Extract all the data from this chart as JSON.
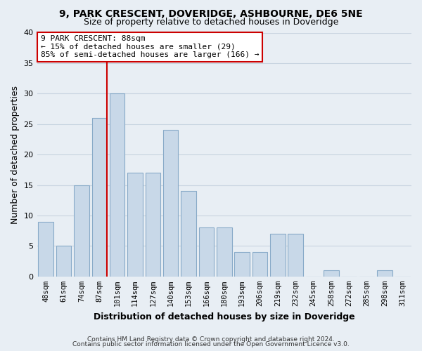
{
  "title1": "9, PARK CRESCENT, DOVERIDGE, ASHBOURNE, DE6 5NE",
  "title2": "Size of property relative to detached houses in Doveridge",
  "xlabel": "Distribution of detached houses by size in Doveridge",
  "ylabel": "Number of detached properties",
  "bar_labels": [
    "48sqm",
    "61sqm",
    "74sqm",
    "87sqm",
    "101sqm",
    "114sqm",
    "127sqm",
    "140sqm",
    "153sqm",
    "166sqm",
    "180sqm",
    "193sqm",
    "206sqm",
    "219sqm",
    "232sqm",
    "245sqm",
    "258sqm",
    "272sqm",
    "285sqm",
    "298sqm",
    "311sqm"
  ],
  "bar_values": [
    9,
    5,
    15,
    26,
    30,
    17,
    17,
    24,
    14,
    8,
    8,
    4,
    4,
    7,
    7,
    0,
    1,
    0,
    0,
    1,
    0
  ],
  "bar_color": "#c8d8e8",
  "bar_edge_color": "#88aac8",
  "grid_color": "#c8d4e0",
  "vline_color": "#cc0000",
  "annotation_title": "9 PARK CRESCENT: 88sqm",
  "annotation_line1": "← 15% of detached houses are smaller (29)",
  "annotation_line2": "85% of semi-detached houses are larger (166) →",
  "annotation_box_color": "#ffffff",
  "annotation_box_edge": "#cc0000",
  "ylim": [
    0,
    40
  ],
  "yticks": [
    0,
    5,
    10,
    15,
    20,
    25,
    30,
    35,
    40
  ],
  "footer1": "Contains HM Land Registry data © Crown copyright and database right 2024.",
  "footer2": "Contains public sector information licensed under the Open Government Licence v3.0.",
  "bg_color": "#e8eef4",
  "plot_bg_color": "#e8eef4",
  "title_fontsize": 10,
  "subtitle_fontsize": 9
}
